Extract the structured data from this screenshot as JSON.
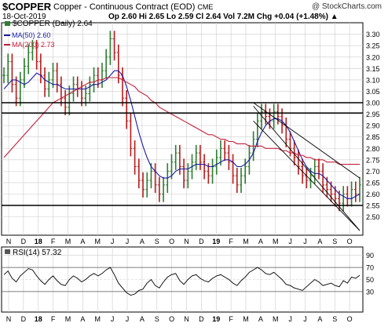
{
  "header": {
    "symbol": "$COPPER",
    "name": "Copper - Continuous Contract (EOD)",
    "exchange": "CME",
    "date": "18-Oct-2019",
    "ohlc_text": "Op 2.60  Hi 2.65  Lo 2.59  Cl 2.64  Vol 7.2M  Chg +0.04 (+1.48%)",
    "chg_arrow": "▲",
    "watermark": "@ StockCharts.com"
  },
  "legend": {
    "price": "$COPPER (Daily) 2.64",
    "ma50": "MA(50) 2.60",
    "ma200": "MA(200) 2.73"
  },
  "rsi_legend": "RSI(14) 57.32",
  "colors": {
    "up": "#2e7d32",
    "down": "#b71c1c",
    "ma50": "#1a1aa8",
    "ma200": "#c41e3a",
    "grid": "#cccccc",
    "line": "#000000"
  },
  "chart_data": [
    {
      "type": "bar",
      "title": "$COPPER (Daily) 2.64",
      "ylim": [
        2.43,
        3.34
      ],
      "yticks": [
        2.5,
        2.55,
        2.6,
        2.65,
        2.7,
        2.75,
        2.8,
        2.85,
        2.9,
        2.95,
        3.0,
        3.05,
        3.1,
        3.15,
        3.2,
        3.25,
        3.3
      ],
      "ytick_labels": [
        "2.50",
        "2.55",
        "2.60",
        "2.65",
        "2.70",
        "2.75",
        "2.80",
        "2.85",
        "2.90",
        "2.95",
        "3.00",
        "3.05",
        "3.10",
        "3.15",
        "3.20",
        "3.25",
        "3.30"
      ],
      "months": [
        "N",
        "D",
        "18",
        "F",
        "M",
        "A",
        "M",
        "J",
        "J",
        "A",
        "S",
        "O",
        "N",
        "D",
        "19",
        "F",
        "M",
        "A",
        "M",
        "J",
        "J",
        "A",
        "S",
        "O"
      ],
      "bold_months": [
        "18",
        "19"
      ],
      "closes": [
        3.12,
        3.18,
        3.08,
        3.02,
        3.1,
        3.16,
        3.22,
        3.24,
        3.18,
        3.12,
        3.06,
        3.1,
        3.14,
        3.08,
        3.02,
        2.98,
        3.04,
        3.08,
        3.06,
        3.02,
        3.04,
        3.08,
        3.12,
        3.1,
        3.14,
        3.2,
        3.28,
        3.22,
        3.12,
        3.02,
        2.92,
        2.8,
        2.72,
        2.66,
        2.62,
        2.66,
        2.7,
        2.64,
        2.6,
        2.64,
        2.7,
        2.74,
        2.78,
        2.72,
        2.66,
        2.7,
        2.74,
        2.78,
        2.74,
        2.7,
        2.68,
        2.72,
        2.76,
        2.8,
        2.78,
        2.74,
        2.68,
        2.64,
        2.68,
        2.72,
        2.78,
        2.84,
        2.92,
        2.96,
        2.94,
        2.92,
        2.96,
        2.94,
        2.9,
        2.84,
        2.8,
        2.76,
        2.72,
        2.68,
        2.66,
        2.68,
        2.72,
        2.7,
        2.64,
        2.62,
        2.6,
        2.58,
        2.56,
        2.6,
        2.58,
        2.62,
        2.6,
        2.64
      ],
      "series": [
        {
          "name": "MA(50) 2.60",
          "values": [
            3.06,
            3.08,
            3.1,
            3.1,
            3.09,
            3.08,
            3.09,
            3.11,
            3.13,
            3.12,
            3.1,
            3.09,
            3.08,
            3.08,
            3.07,
            3.06,
            3.06,
            3.06,
            3.06,
            3.06,
            3.06,
            3.07,
            3.08,
            3.08,
            3.09,
            3.1,
            3.12,
            3.14,
            3.14,
            3.12,
            3.07,
            3.01,
            2.94,
            2.87,
            2.81,
            2.76,
            2.72,
            2.7,
            2.68,
            2.67,
            2.67,
            2.68,
            2.7,
            2.71,
            2.71,
            2.71,
            2.72,
            2.73,
            2.73,
            2.73,
            2.72,
            2.72,
            2.73,
            2.74,
            2.75,
            2.75,
            2.74,
            2.72,
            2.72,
            2.73,
            2.75,
            2.78,
            2.83,
            2.87,
            2.9,
            2.92,
            2.93,
            2.93,
            2.92,
            2.9,
            2.87,
            2.83,
            2.79,
            2.75,
            2.72,
            2.7,
            2.69,
            2.69,
            2.68,
            2.66,
            2.64,
            2.62,
            2.6,
            2.59,
            2.58,
            2.58,
            2.59,
            2.6
          ]
        },
        {
          "name": "MA(200) 2.73",
          "values": [
            2.76,
            2.78,
            2.8,
            2.82,
            2.84,
            2.86,
            2.88,
            2.9,
            2.92,
            2.94,
            2.96,
            2.98,
            3.0,
            3.01,
            3.02,
            3.03,
            3.04,
            3.05,
            3.06,
            3.07,
            3.08,
            3.09,
            3.09,
            3.1,
            3.1,
            3.11,
            3.11,
            3.11,
            3.11,
            3.1,
            3.09,
            3.08,
            3.07,
            3.05,
            3.04,
            3.03,
            3.01,
            3.0,
            2.98,
            2.97,
            2.96,
            2.95,
            2.94,
            2.93,
            2.92,
            2.91,
            2.9,
            2.89,
            2.88,
            2.87,
            2.86,
            2.86,
            2.85,
            2.84,
            2.84,
            2.83,
            2.83,
            2.82,
            2.82,
            2.82,
            2.81,
            2.81,
            2.81,
            2.81,
            2.8,
            2.8,
            2.8,
            2.8,
            2.79,
            2.79,
            2.78,
            2.78,
            2.77,
            2.77,
            2.76,
            2.76,
            2.75,
            2.75,
            2.75,
            2.74,
            2.74,
            2.74,
            2.73,
            2.73,
            2.73,
            2.73,
            2.73,
            2.73
          ]
        }
      ],
      "horizontal_lines": [
        3.0,
        2.955,
        2.55
      ],
      "channel_lines": [
        {
          "from": [
            61,
            3.0
          ],
          "to": [
            87,
            2.67
          ]
        },
        {
          "from": [
            61,
            2.985
          ],
          "to": [
            87,
            2.44
          ]
        },
        {
          "from": [
            61,
            2.92
          ],
          "to": [
            87,
            2.44
          ]
        }
      ]
    },
    {
      "type": "line",
      "title": "RSI(14) 57.32",
      "ylim": [
        0,
        100
      ],
      "yticks": [
        30,
        50,
        70,
        90
      ],
      "ytick_labels": [
        "30",
        "50",
        "70",
        "90"
      ],
      "series": [
        {
          "name": "RSI(14) 57.32",
          "values": [
            58,
            64,
            52,
            46,
            56,
            62,
            68,
            66,
            56,
            48,
            42,
            50,
            56,
            48,
            42,
            40,
            50,
            56,
            52,
            46,
            50,
            56,
            60,
            56,
            60,
            66,
            70,
            58,
            44,
            36,
            28,
            24,
            26,
            32,
            34,
            44,
            50,
            40,
            36,
            46,
            54,
            58,
            60,
            48,
            42,
            50,
            56,
            58,
            52,
            48,
            46,
            52,
            56,
            58,
            54,
            50,
            44,
            40,
            48,
            54,
            62,
            66,
            70,
            66,
            60,
            58,
            62,
            56,
            50,
            42,
            40,
            36,
            34,
            32,
            38,
            44,
            50,
            46,
            40,
            42,
            44,
            40,
            38,
            48,
            44,
            54,
            52,
            57
          ]
        }
      ]
    }
  ]
}
